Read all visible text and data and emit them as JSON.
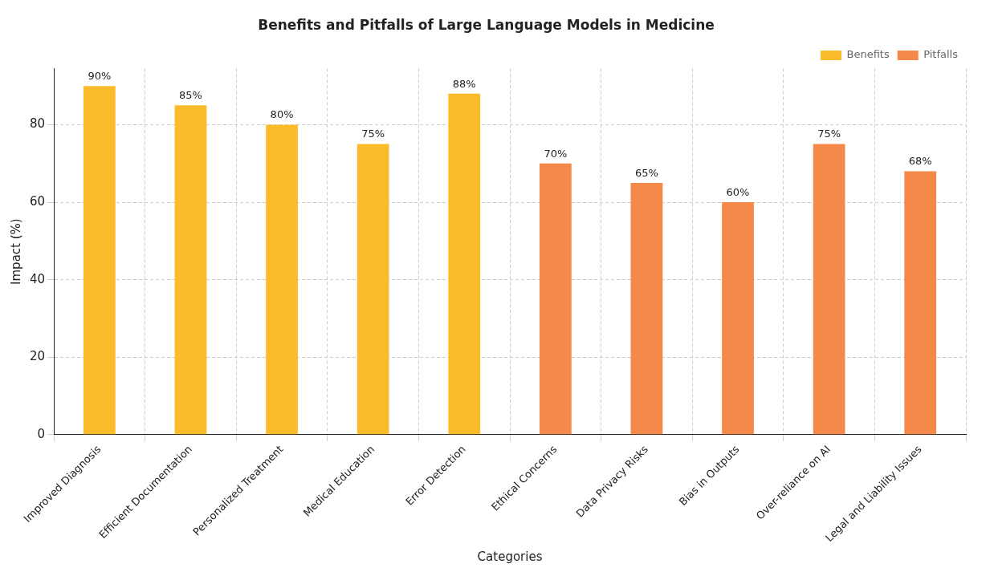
{
  "chart_data": {
    "type": "bar",
    "title": "Benefits and Pitfalls of Large Language Models in Medicine",
    "xlabel": "Categories",
    "ylabel": "Impact (%)",
    "categories": [
      "Improved Diagnosis",
      "Efficient Documentation",
      "Personalized Treatment",
      "Medical Education",
      "Error Detection",
      "Ethical Concerns",
      "Data Privacy Risks",
      "Bias in Outputs",
      "Over-reliance on AI",
      "Legal and Liability Issues"
    ],
    "series": [
      {
        "name": "Benefits",
        "color": "#fbbc2c",
        "values": [
          90,
          85,
          80,
          75,
          88,
          null,
          null,
          null,
          null,
          null
        ],
        "value_labels": [
          "90%",
          "85%",
          "80%",
          "75%",
          "88%",
          null,
          null,
          null,
          null,
          null
        ]
      },
      {
        "name": "Pitfalls",
        "color": "#f4894a",
        "values": [
          null,
          null,
          null,
          null,
          null,
          70,
          65,
          60,
          75,
          68
        ],
        "value_labels": [
          null,
          null,
          null,
          null,
          null,
          "70%",
          "65%",
          "60%",
          "75%",
          "68%"
        ]
      }
    ],
    "ylim": [
      0,
      94.5
    ],
    "yticks": [
      0,
      20,
      40,
      60,
      80
    ],
    "grid": true,
    "legend": "top right"
  }
}
